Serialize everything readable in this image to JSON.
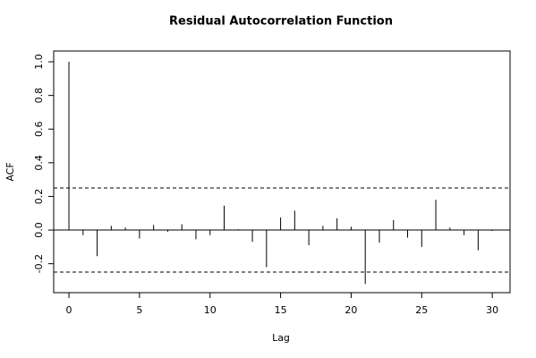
{
  "chart_data": {
    "type": "acf",
    "title": "Residual Autocorrelation Function",
    "x_label": "Lag",
    "y_label": "ACF",
    "x": [
      0,
      1,
      2,
      3,
      4,
      5,
      6,
      7,
      8,
      9,
      10,
      11,
      12,
      13,
      14,
      15,
      16,
      17,
      18,
      19,
      20,
      21,
      22,
      23,
      24,
      25,
      26,
      27,
      28,
      29,
      30
    ],
    "values": [
      1.0,
      -0.03,
      -0.155,
      0.025,
      0.015,
      -0.05,
      0.03,
      -0.01,
      0.035,
      -0.055,
      -0.03,
      0.145,
      0.005,
      -0.07,
      -0.22,
      0.075,
      0.115,
      -0.09,
      0.025,
      0.07,
      0.02,
      -0.32,
      -0.075,
      0.06,
      -0.045,
      -0.1,
      0.18,
      0.015,
      -0.03,
      -0.12,
      -0.005
    ],
    "color": "#000000",
    "confidence_bounds": [
      -0.25,
      0.25
    ],
    "xlim": [
      -1.08,
      31.26
    ],
    "ylim": [
      -0.372,
      1.064
    ],
    "xticks": [
      0,
      5,
      10,
      15,
      20,
      25,
      30
    ],
    "yticks": [
      -0.2,
      {
        "value": 0,
        "label": "0.0"
      },
      0.2,
      0.4,
      0.6,
      0.8,
      {
        "value": 1,
        "label": "1.0"
      }
    ]
  }
}
